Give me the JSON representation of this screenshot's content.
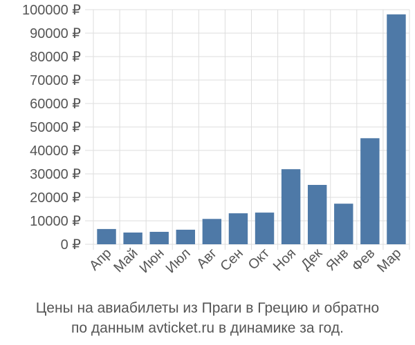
{
  "chart_data": {
    "type": "bar",
    "categories": [
      "Апр",
      "Май",
      "Июн",
      "Июл",
      "Авг",
      "Сен",
      "Окт",
      "Ноя",
      "Дек",
      "Янв",
      "Фев",
      "Мар"
    ],
    "values": [
      6500,
      5000,
      5300,
      6200,
      10800,
      13200,
      13500,
      32000,
      25300,
      17300,
      45200,
      98000
    ],
    "ylim": [
      0,
      100000
    ],
    "yticks": [
      0,
      10000,
      20000,
      30000,
      40000,
      50000,
      60000,
      70000,
      80000,
      90000,
      100000
    ],
    "currency_suffix": " ₽",
    "grid": true,
    "bar_color": "#4e79a7",
    "grid_color": "#dddddd"
  },
  "caption": {
    "line1": "Цены на авиабилеты из Праги в Грецию и обратно",
    "line2": "по данным avticket.ru в динамике за год."
  }
}
